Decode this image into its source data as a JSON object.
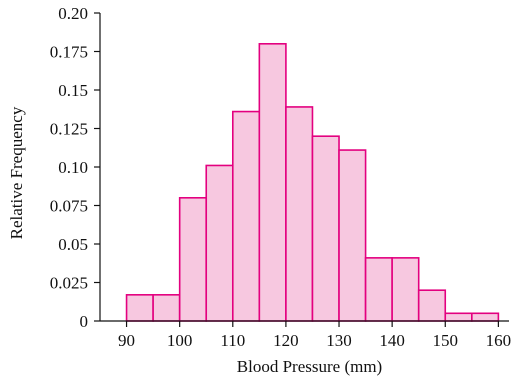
{
  "chart_data": {
    "type": "bar",
    "subtype": "histogram",
    "xlabel": "Blood Pressure (mm)",
    "ylabel": "Relative Frequency",
    "bin_edges": [
      90,
      95,
      100,
      105,
      110,
      115,
      120,
      125,
      130,
      135,
      140,
      145,
      150,
      155,
      160
    ],
    "values": [
      0.017,
      0.017,
      0.08,
      0.101,
      0.136,
      0.18,
      0.139,
      0.12,
      0.111,
      0.041,
      0.041,
      0.02,
      0.005,
      0.005
    ],
    "xlim": [
      85,
      162
    ],
    "ylim": [
      0,
      0.2
    ],
    "x_ticks": [
      90,
      100,
      110,
      120,
      130,
      140,
      150,
      160
    ],
    "x_tick_labels": [
      "90",
      "100",
      "110",
      "120",
      "130",
      "140",
      "150",
      "160"
    ],
    "y_ticks": [
      0,
      0.025,
      0.05,
      0.075,
      0.1,
      0.125,
      0.15,
      0.175,
      0.2
    ],
    "y_tick_labels": [
      "0",
      "0.025",
      "0.05",
      "0.075",
      "0.10",
      "0.125",
      "0.15",
      "0.175",
      "0.20"
    ],
    "grid": false,
    "colors": {
      "bar_fill": "#f7c8e0",
      "bar_stroke": "#e3007f",
      "axis": "#111111"
    }
  }
}
